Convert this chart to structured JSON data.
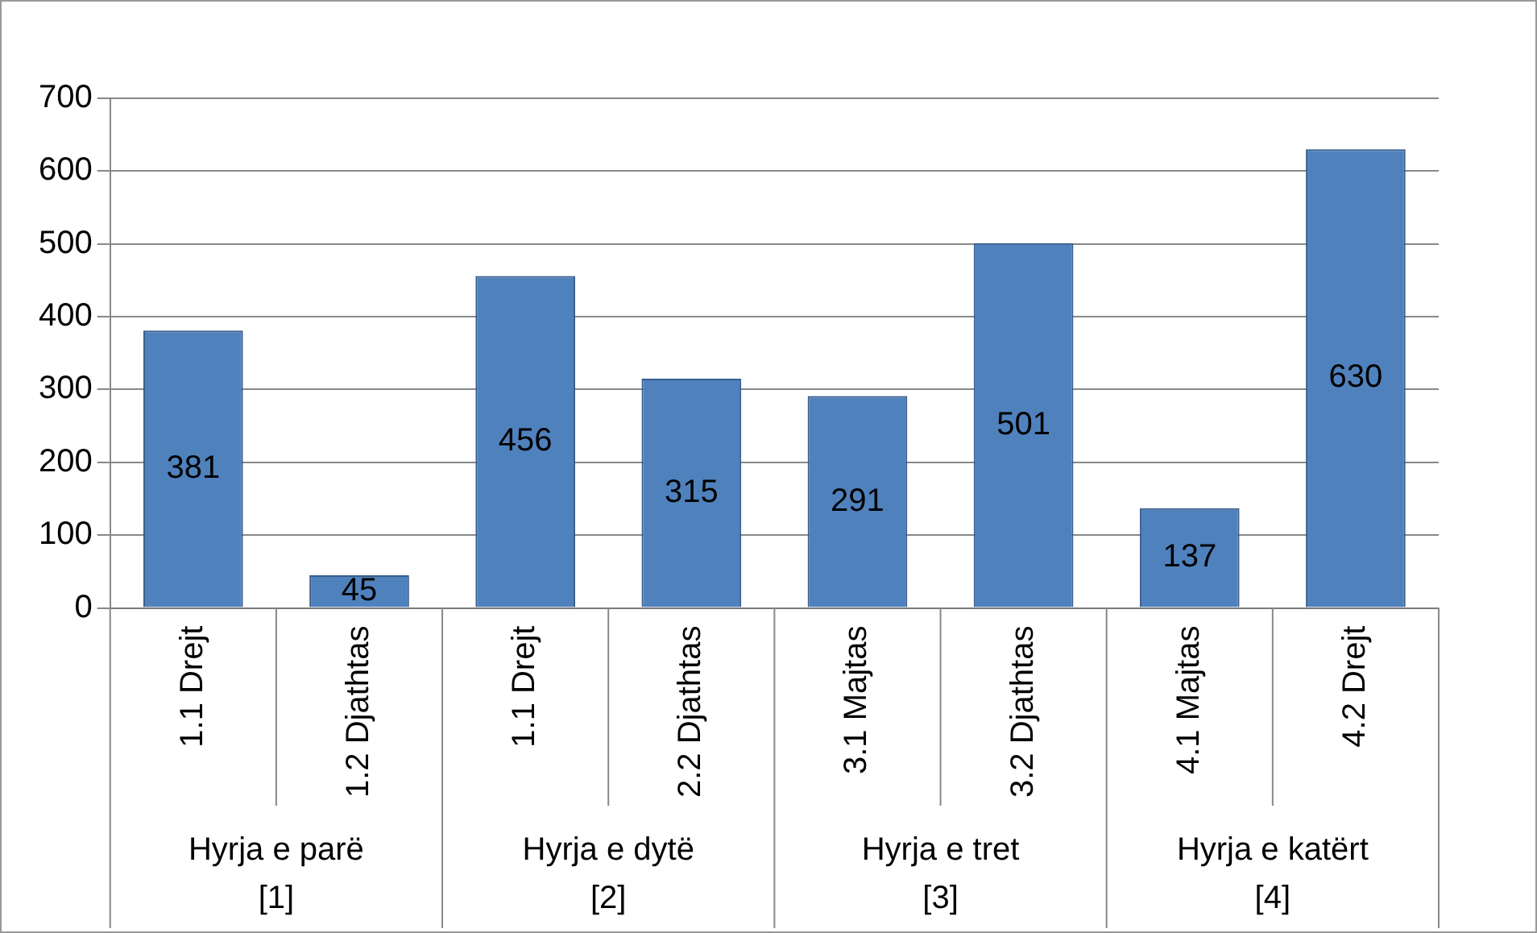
{
  "chart_data": {
    "type": "bar",
    "categories": [
      "1.1 Drejt",
      "1.2 Djathtas",
      "1.1 Drejt",
      "2.2 Djathtas",
      "3.1 Majtas",
      "3.2 Djathtas",
      "4.1 Majtas",
      "4.2 Drejt"
    ],
    "values": [
      381,
      45,
      456,
      315,
      291,
      501,
      137,
      630
    ],
    "color": "#4f81bd",
    "ylim": [
      0,
      700
    ],
    "yticks": [
      0,
      100,
      200,
      300,
      400,
      500,
      600,
      700
    ],
    "grid": "y",
    "data_labels": true,
    "legend": false,
    "annotations": [
      "Hyrja e parë [1]",
      "Hyrja e dytë [2]",
      "Hyrja e tret [3]",
      "Hyrja e katërt [4]"
    ]
  }
}
